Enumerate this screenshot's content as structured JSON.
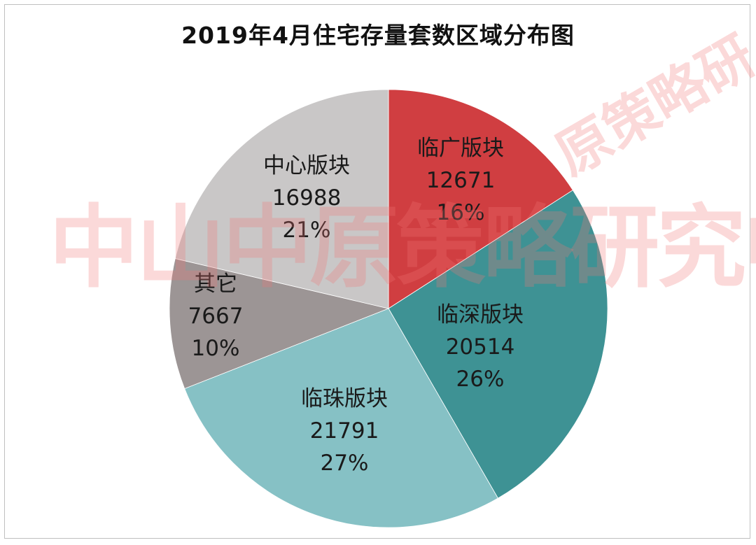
{
  "chart_data": {
    "type": "pie",
    "title": "2019年4月住宅存量套数区域分布图",
    "start_angle_deg": 0,
    "direction": "clockwise",
    "slices": [
      {
        "label": "临广版块",
        "value": 12671,
        "percent": "16%",
        "color": "#d03e41",
        "label_pos": [
          658,
          222
        ],
        "line_gap": 46
      },
      {
        "label": "临深版块",
        "value": 20514,
        "percent": "26%",
        "color": "#3e9294",
        "label_pos": [
          686,
          460
        ],
        "line_gap": 46
      },
      {
        "label": "临珠版块",
        "value": 21791,
        "percent": "27%",
        "color": "#86c1c5",
        "label_pos": [
          492,
          580
        ],
        "line_gap": 46
      },
      {
        "label": "其它",
        "value": 7667,
        "percent": "10%",
        "color": "#9c9595",
        "label_pos": [
          308,
          416
        ],
        "line_gap": 46
      },
      {
        "label": "中心版块",
        "value": 16988,
        "percent": "21%",
        "color": "#c9c7c7",
        "label_pos": [
          438,
          247
        ],
        "line_gap": 46
      }
    ]
  },
  "watermark": {
    "main_text": "中山中原策略研究中心",
    "diag_text": "原策略研"
  }
}
